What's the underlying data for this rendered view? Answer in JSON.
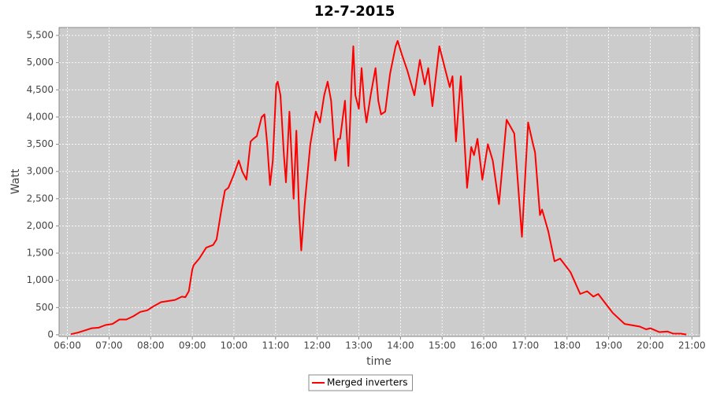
{
  "chart_data": {
    "type": "line",
    "title": "12-7-2015",
    "x_label": "time",
    "y_label": "Watt",
    "x": [
      "06:05",
      "06:15",
      "06:25",
      "06:35",
      "06:45",
      "06:55",
      "07:05",
      "07:15",
      "07:25",
      "07:35",
      "07:45",
      "07:55",
      "08:05",
      "08:15",
      "08:25",
      "08:35",
      "08:45",
      "08:50",
      "08:55",
      "09:00",
      "09:02",
      "09:10",
      "09:20",
      "09:30",
      "09:35",
      "09:42",
      "09:47",
      "09:52",
      "10:00",
      "10:07",
      "10:12",
      "10:18",
      "10:24",
      "10:28",
      "10:33",
      "10:40",
      "10:44",
      "10:48",
      "10:52",
      "10:56",
      "11:01",
      "11:03",
      "11:07",
      "11:12",
      "11:15",
      "11:20",
      "11:26",
      "11:30",
      "11:34",
      "11:37",
      "11:42",
      "11:50",
      "11:58",
      "12:04",
      "12:10",
      "12:15",
      "12:20",
      "12:26",
      "12:30",
      "12:33",
      "12:40",
      "12:45",
      "12:50",
      "12:52",
      "12:55",
      "13:00",
      "13:04",
      "13:08",
      "13:11",
      "13:17",
      "13:24",
      "13:28",
      "13:32",
      "13:38",
      "13:45",
      "13:53",
      "13:56",
      "14:02",
      "14:10",
      "14:20",
      "14:28",
      "14:35",
      "14:40",
      "14:46",
      "14:56",
      "15:04",
      "15:11",
      "15:15",
      "15:20",
      "15:27",
      "15:36",
      "15:42",
      "15:46",
      "15:51",
      "15:58",
      "16:06",
      "16:13",
      "16:22",
      "16:33",
      "16:44",
      "16:55",
      "17:04",
      "17:11",
      "17:14",
      "17:21",
      "17:24",
      "17:33",
      "17:42",
      "17:50",
      "18:05",
      "18:19",
      "18:29",
      "18:38",
      "18:45",
      "18:54",
      "19:06",
      "19:23",
      "19:45",
      "19:54",
      "20:00",
      "20:13",
      "20:25",
      "20:33",
      "20:44",
      "20:52"
    ],
    "series": [
      {
        "name": "Merged inverters",
        "color": "#ff0000",
        "values": [
          10,
          40,
          80,
          120,
          130,
          180,
          200,
          280,
          280,
          340,
          420,
          450,
          530,
          600,
          620,
          640,
          700,
          690,
          800,
          1200,
          1280,
          1400,
          1600,
          1650,
          1750,
          2300,
          2650,
          2700,
          2950,
          3200,
          3000,
          2850,
          3550,
          3600,
          3650,
          4000,
          4050,
          3500,
          2750,
          3200,
          4600,
          4650,
          4400,
          3300,
          2800,
          4100,
          2500,
          3750,
          2200,
          1550,
          2400,
          3500,
          4100,
          3900,
          4400,
          4650,
          4300,
          3200,
          3600,
          3600,
          4300,
          3100,
          4800,
          5300,
          4400,
          4150,
          4900,
          4200,
          3900,
          4400,
          4900,
          4300,
          4050,
          4100,
          4800,
          5300,
          5400,
          5150,
          4850,
          4400,
          5050,
          4600,
          4900,
          4200,
          5300,
          4900,
          4550,
          4750,
          3550,
          4750,
          2700,
          3450,
          3300,
          3600,
          2850,
          3500,
          3200,
          2400,
          3950,
          3700,
          1800,
          3900,
          3500,
          3350,
          2200,
          2300,
          1900,
          1350,
          1400,
          1150,
          750,
          800,
          700,
          750,
          600,
          400,
          200,
          150,
          100,
          120,
          50,
          60,
          20,
          20,
          5
        ]
      }
    ],
    "xlim": [
      "05:48",
      "21:11"
    ],
    "xticks": [
      "06:00",
      "07:00",
      "08:00",
      "09:00",
      "10:00",
      "11:00",
      "12:00",
      "13:00",
      "14:00",
      "15:00",
      "16:00",
      "17:00",
      "18:00",
      "19:00",
      "20:00",
      "21:00"
    ],
    "ylim": [
      -30,
      5645
    ],
    "yticks": [
      0,
      500,
      {
        "value": 1000,
        "label": "1,000"
      },
      {
        "value": 1500,
        "label": "1,500"
      },
      {
        "value": 2000,
        "label": "2,000"
      },
      {
        "value": 2500,
        "label": "2,500"
      },
      {
        "value": 3000,
        "label": "3,000"
      },
      {
        "value": 3500,
        "label": "3,500"
      },
      {
        "value": 4000,
        "label": "4,000"
      },
      {
        "value": 4500,
        "label": "4,500"
      },
      {
        "value": 5000,
        "label": "5,000"
      },
      {
        "value": 5500,
        "label": "5,500"
      }
    ],
    "grid": true,
    "legend": "bottom"
  }
}
